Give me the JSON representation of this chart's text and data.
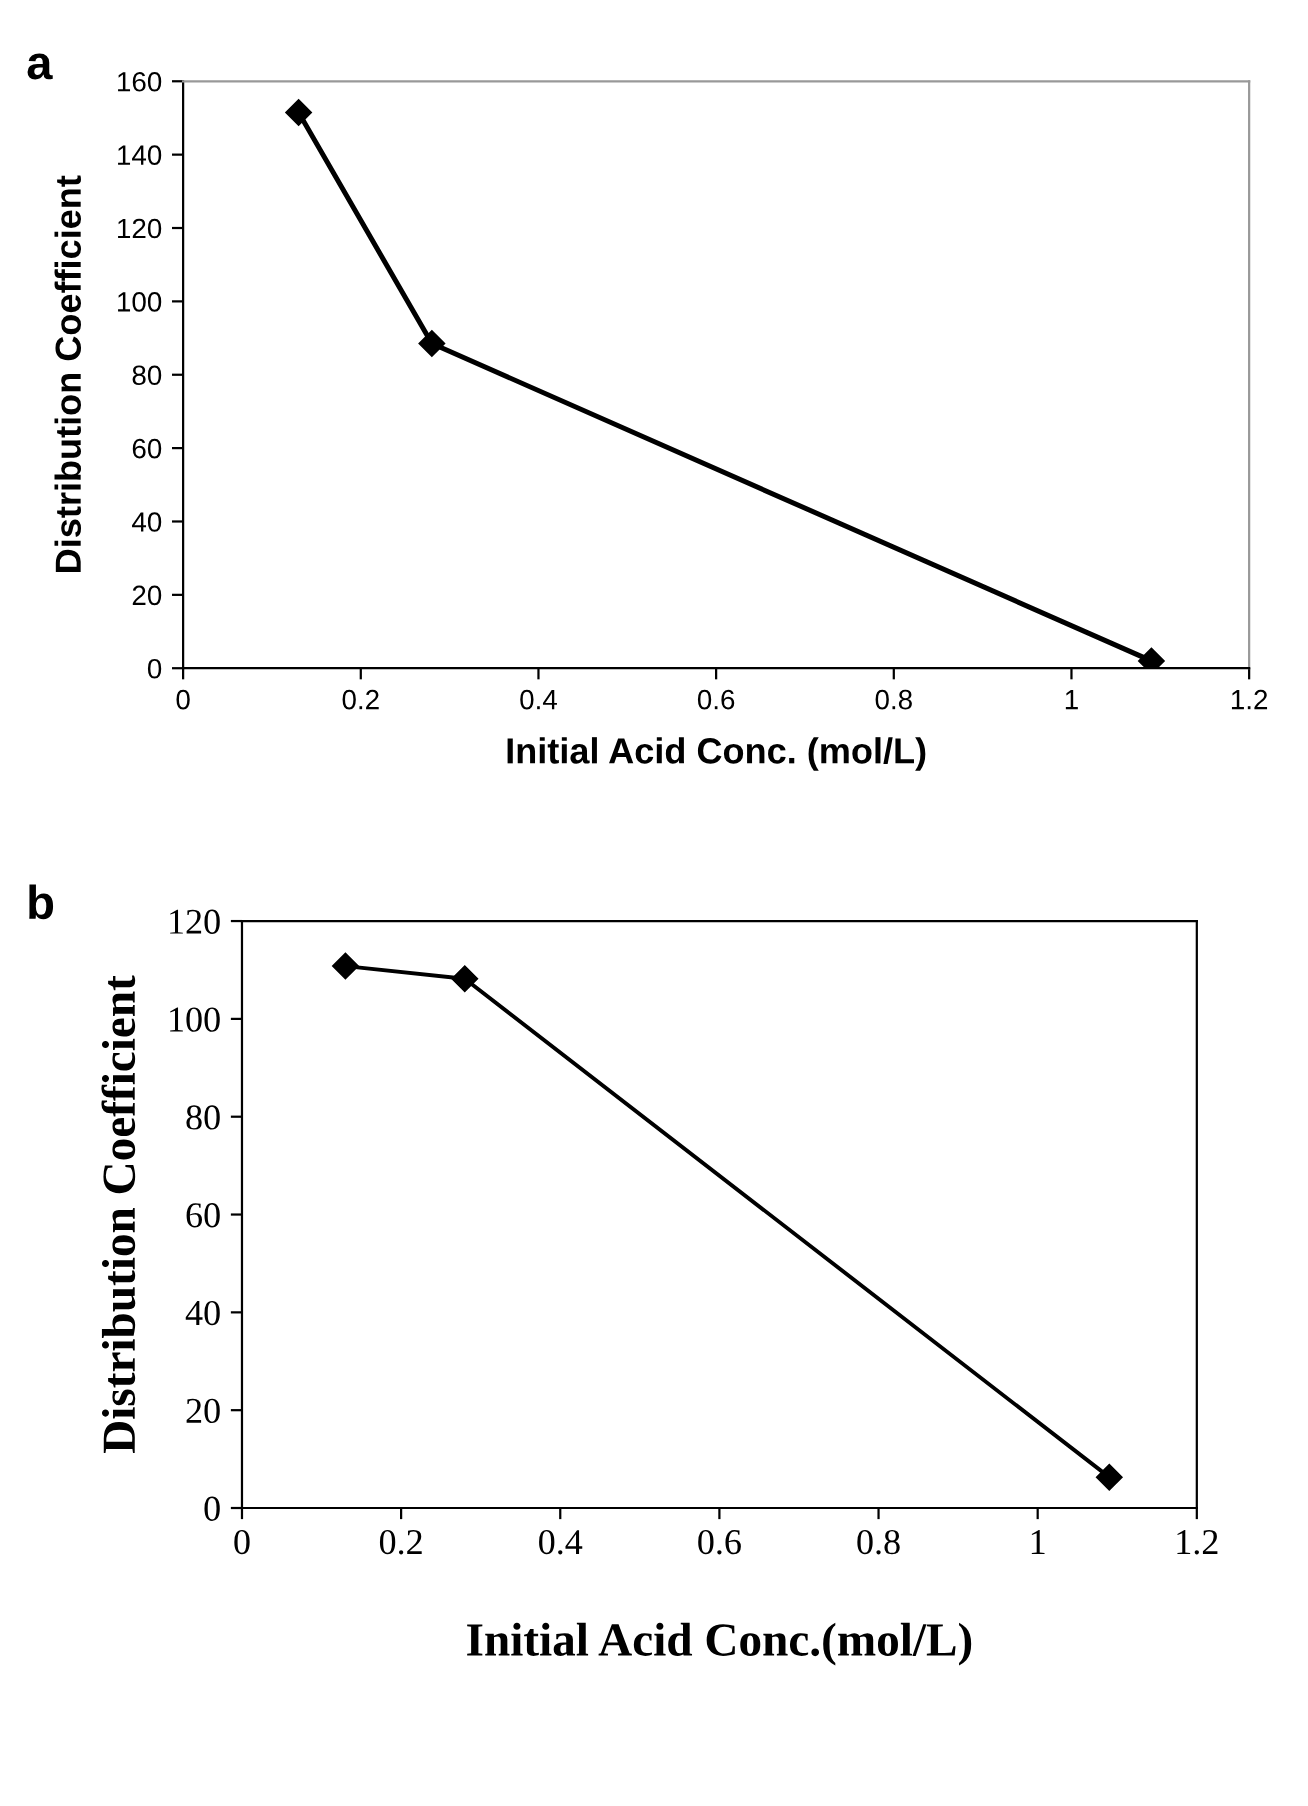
{
  "chart_data": [
    {
      "type": "line",
      "title": "a",
      "xlabel": "Initial Acid Conc. (mol/L)",
      "ylabel": "Distribution Coefficient",
      "x": [
        0.13,
        0.28,
        1.09
      ],
      "series": [
        {
          "color": "#000000",
          "values": [
            151.5,
            88.5,
            2
          ]
        }
      ],
      "xlim": [
        0,
        1.2
      ],
      "ylim": [
        0,
        160
      ],
      "xticks": [
        0,
        0.2,
        0.4,
        0.6,
        0.8,
        1,
        1.2
      ],
      "yticks": [
        0,
        20,
        40,
        60,
        80,
        100,
        120,
        140,
        160
      ],
      "marker": "diamond",
      "line_style": "solid",
      "grid": false,
      "legend": false
    },
    {
      "type": "line",
      "title": "b",
      "xlabel": "Initial Acid Conc.(mol/L)",
      "ylabel": "Distribution Coefficient",
      "x": [
        0.13,
        0.28,
        1.09
      ],
      "series": [
        {
          "color": "#000000",
          "values": [
            110.8,
            108.2,
            6.3
          ]
        }
      ],
      "xlim": [
        0,
        1.2
      ],
      "ylim": [
        0,
        120
      ],
      "xticks": [
        0,
        0.2,
        0.4,
        0.6,
        0.8,
        1,
        1.2
      ],
      "yticks": [
        0,
        20,
        40,
        60,
        80,
        100,
        120
      ],
      "marker": "diamond",
      "line_style": "solid",
      "grid": false,
      "legend": false
    }
  ]
}
